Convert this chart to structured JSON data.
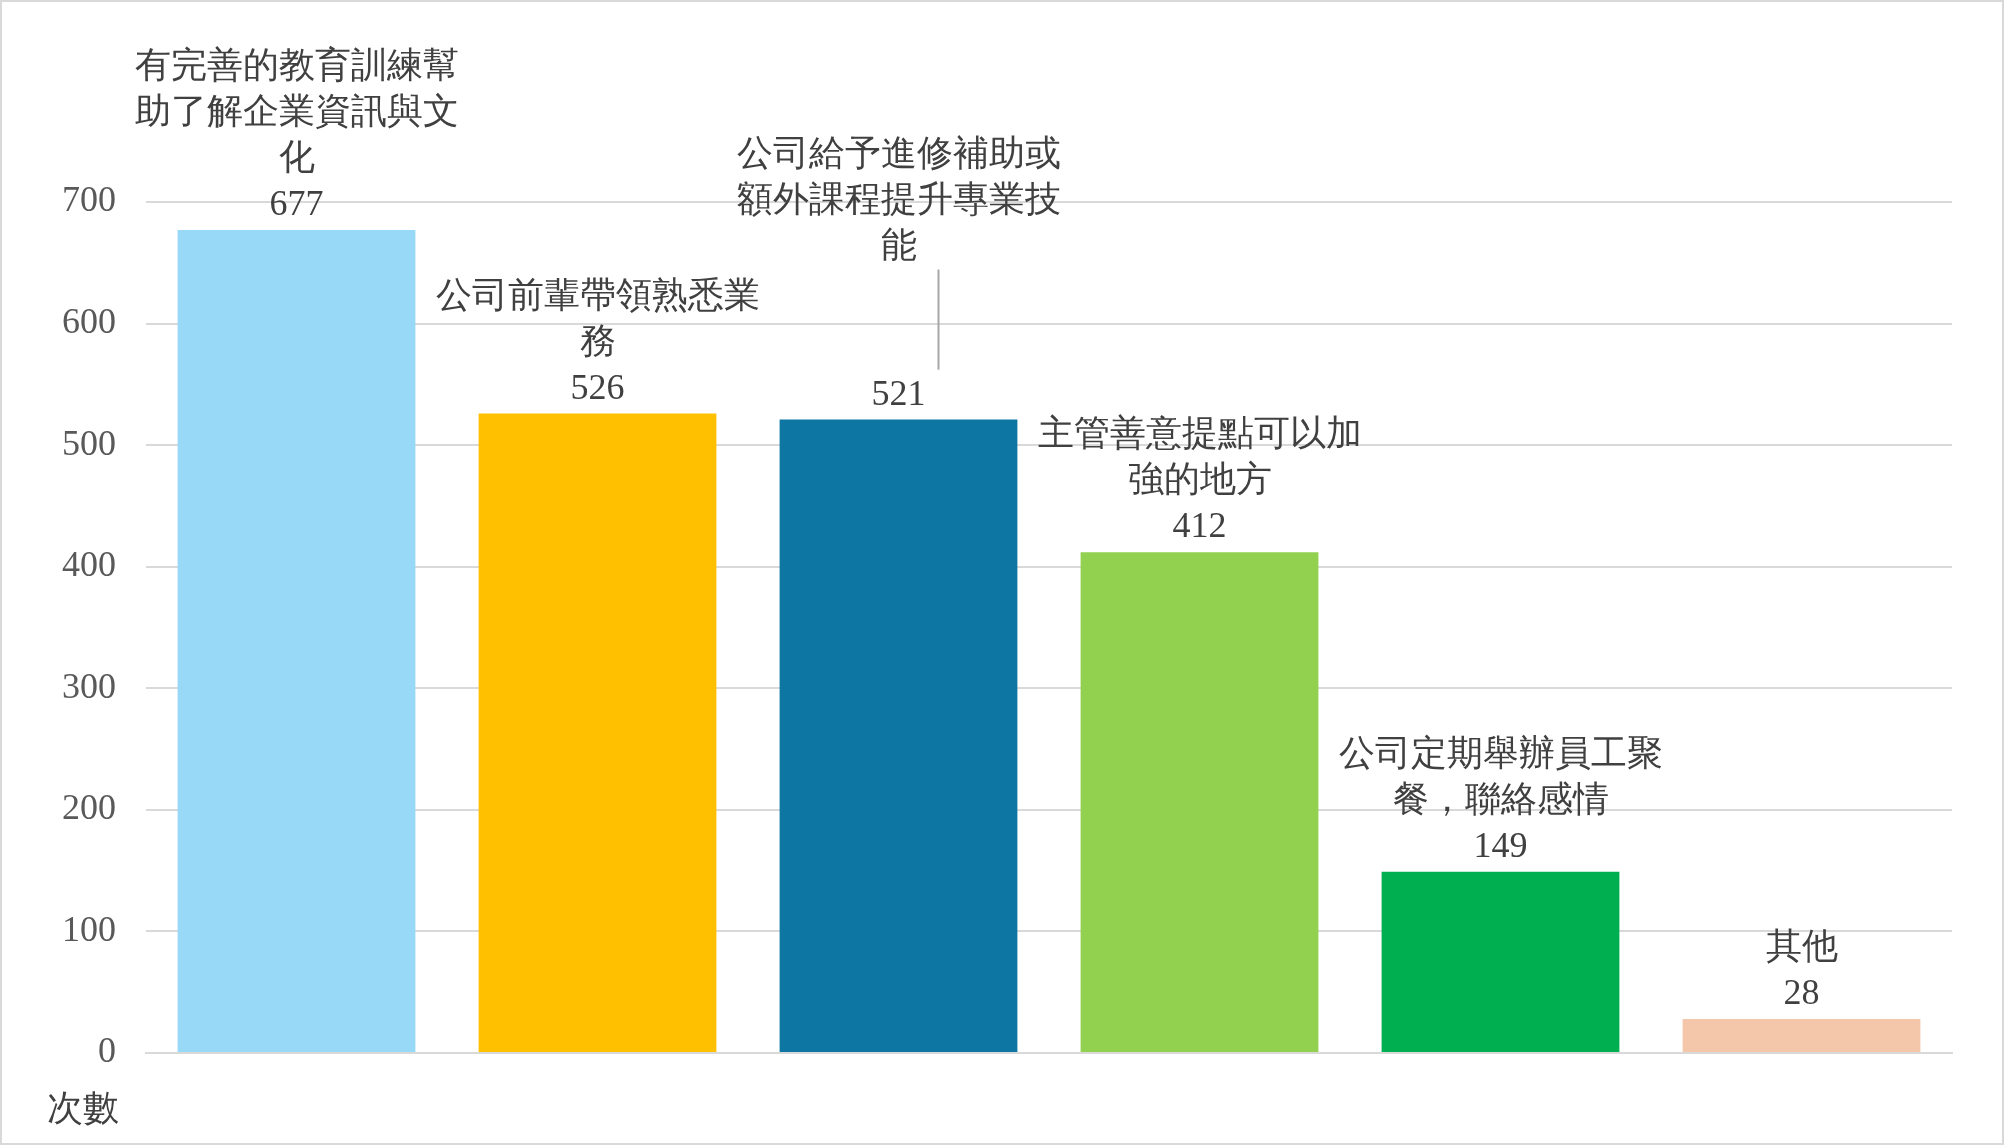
{
  "chart_data": {
    "type": "bar",
    "ylabel": "次數",
    "categories": [
      "有完善的教育訓練幫助了解企業資訊與文化",
      "公司前輩帶領熟悉業務",
      "公司給予進修補助或額外課程提升專業技能",
      "主管善意提點可以加強的地方",
      "公司定期舉辦員工聚餐，聯絡感情",
      "其他"
    ],
    "values": [
      677,
      526,
      521,
      412,
      149,
      28
    ],
    "colors": [
      "#97d9f7",
      "#ffc000",
      "#0e76a2",
      "#92d050",
      "#00b050",
      "#f4c7ab"
    ],
    "ylim": [
      0,
      700
    ],
    "yticks": [
      0,
      100,
      200,
      300,
      400,
      500,
      600,
      700
    ],
    "grid": "y",
    "legend": false,
    "data_labels": true
  }
}
